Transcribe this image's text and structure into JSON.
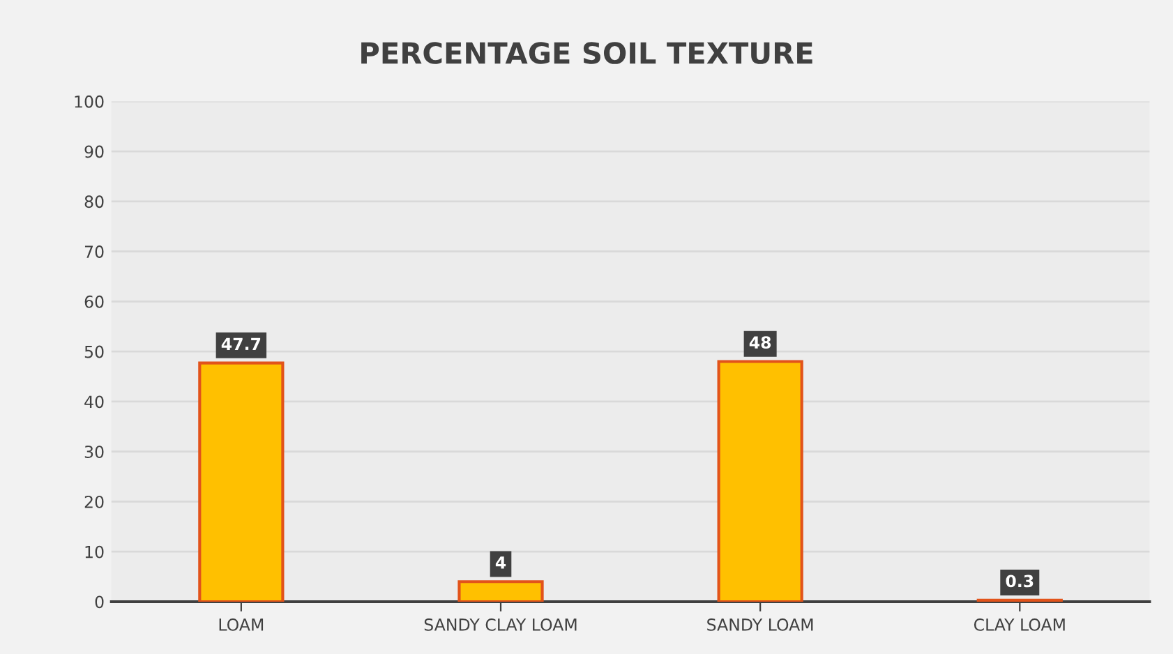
{
  "chart_data": {
    "type": "bar",
    "title": "PERCENTAGE SOIL TEXTURE",
    "categories": [
      "LOAM",
      "SANDY CLAY LOAM",
      "SANDY LOAM",
      "CLAY LOAM"
    ],
    "values": [
      47.7,
      4,
      48,
      0.3
    ],
    "color": "#ffc000",
    "ylim": [
      0,
      100
    ],
    "yticks": [
      0,
      10,
      20,
      30,
      40,
      50,
      60,
      70,
      80,
      90,
      100
    ],
    "grid": "y",
    "data_labels": true
  }
}
